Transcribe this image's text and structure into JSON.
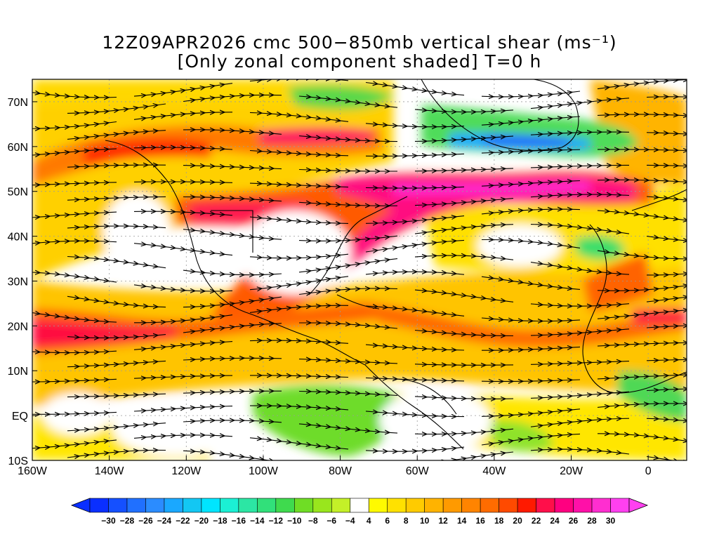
{
  "title": {
    "line1": "12Z09APR2026 cmc 500−850mb vertical shear (ms⁻¹)",
    "line2": "[Only zonal component shaded] T=0 h"
  },
  "map": {
    "lon_range": [
      -160,
      10
    ],
    "lat_range": [
      -10,
      75
    ],
    "lon_ticks": [
      {
        "value": -160,
        "label": "160W"
      },
      {
        "value": -140,
        "label": "140W"
      },
      {
        "value": -120,
        "label": "120W"
      },
      {
        "value": -100,
        "label": "100W"
      },
      {
        "value": -80,
        "label": "80W"
      },
      {
        "value": -60,
        "label": "60W"
      },
      {
        "value": -40,
        "label": "40W"
      },
      {
        "value": -20,
        "label": "20W"
      },
      {
        "value": 0,
        "label": "0"
      }
    ],
    "lat_ticks": [
      {
        "value": 70,
        "label": "70N"
      },
      {
        "value": 60,
        "label": "60N"
      },
      {
        "value": 50,
        "label": "50N"
      },
      {
        "value": 40,
        "label": "40N"
      },
      {
        "value": 30,
        "label": "30N"
      },
      {
        "value": 20,
        "label": "20N"
      },
      {
        "value": 10,
        "label": "10N"
      },
      {
        "value": 0,
        "label": "EQ"
      },
      {
        "value": -10,
        "label": "10S"
      }
    ]
  },
  "colorbar": {
    "levels": [
      "-30",
      "-28",
      "-26",
      "-24",
      "-22",
      "-20",
      "-18",
      "-16",
      "-14",
      "-12",
      "-10",
      "-8",
      "-6",
      "-4",
      "4",
      "6",
      "8",
      "10",
      "12",
      "14",
      "16",
      "18",
      "20",
      "22",
      "24",
      "26",
      "28",
      "30"
    ],
    "colors": [
      "#0a2fff",
      "#1550ff",
      "#2070ff",
      "#2b8cff",
      "#1aa8ff",
      "#13c7f3",
      "#00e5ff",
      "#1bf0d4",
      "#2ce6a4",
      "#31e07a",
      "#3fda4e",
      "#6fdd25",
      "#99e61d",
      "#c4f028",
      "#ffffff",
      "#fffa00",
      "#ffe100",
      "#ffcb00",
      "#ffb300",
      "#ff9a00",
      "#ff8400",
      "#ff6c00",
      "#ff4a00",
      "#ff1a00",
      "#ff0f4a",
      "#ff0080",
      "#ff10a8",
      "#ff2ed0",
      "#ff40f0"
    ]
  }
}
